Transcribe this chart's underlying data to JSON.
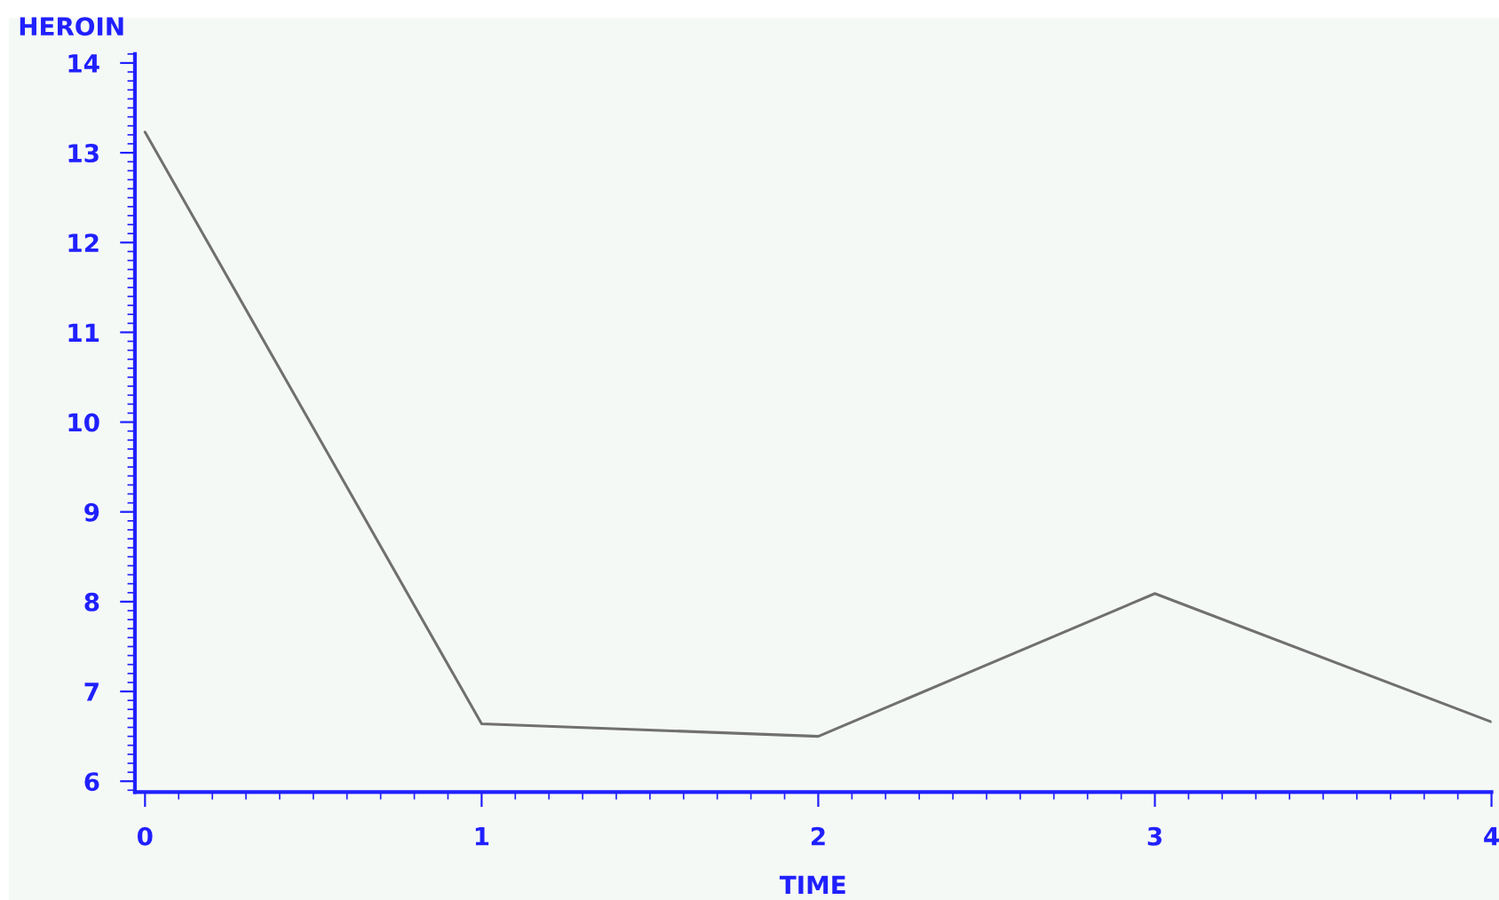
{
  "chart_data": {
    "type": "line",
    "xlabel": "TIME",
    "ylabel": "HEROIN",
    "x": [
      0,
      1,
      2,
      3,
      4
    ],
    "series": [
      {
        "color": "#707070",
        "values": [
          13.23,
          6.64,
          6.5,
          8.09,
          6.66
        ]
      }
    ],
    "xlim": [
      -0.03,
      4
    ],
    "ylim": [
      5.88,
      14.1
    ],
    "xticks": [
      0,
      1,
      2,
      3,
      4
    ],
    "yticks": [
      6,
      7,
      8,
      9,
      10,
      11,
      12,
      13,
      14
    ],
    "grid": false,
    "legend": false,
    "marker": "none",
    "line_style": "solid"
  }
}
